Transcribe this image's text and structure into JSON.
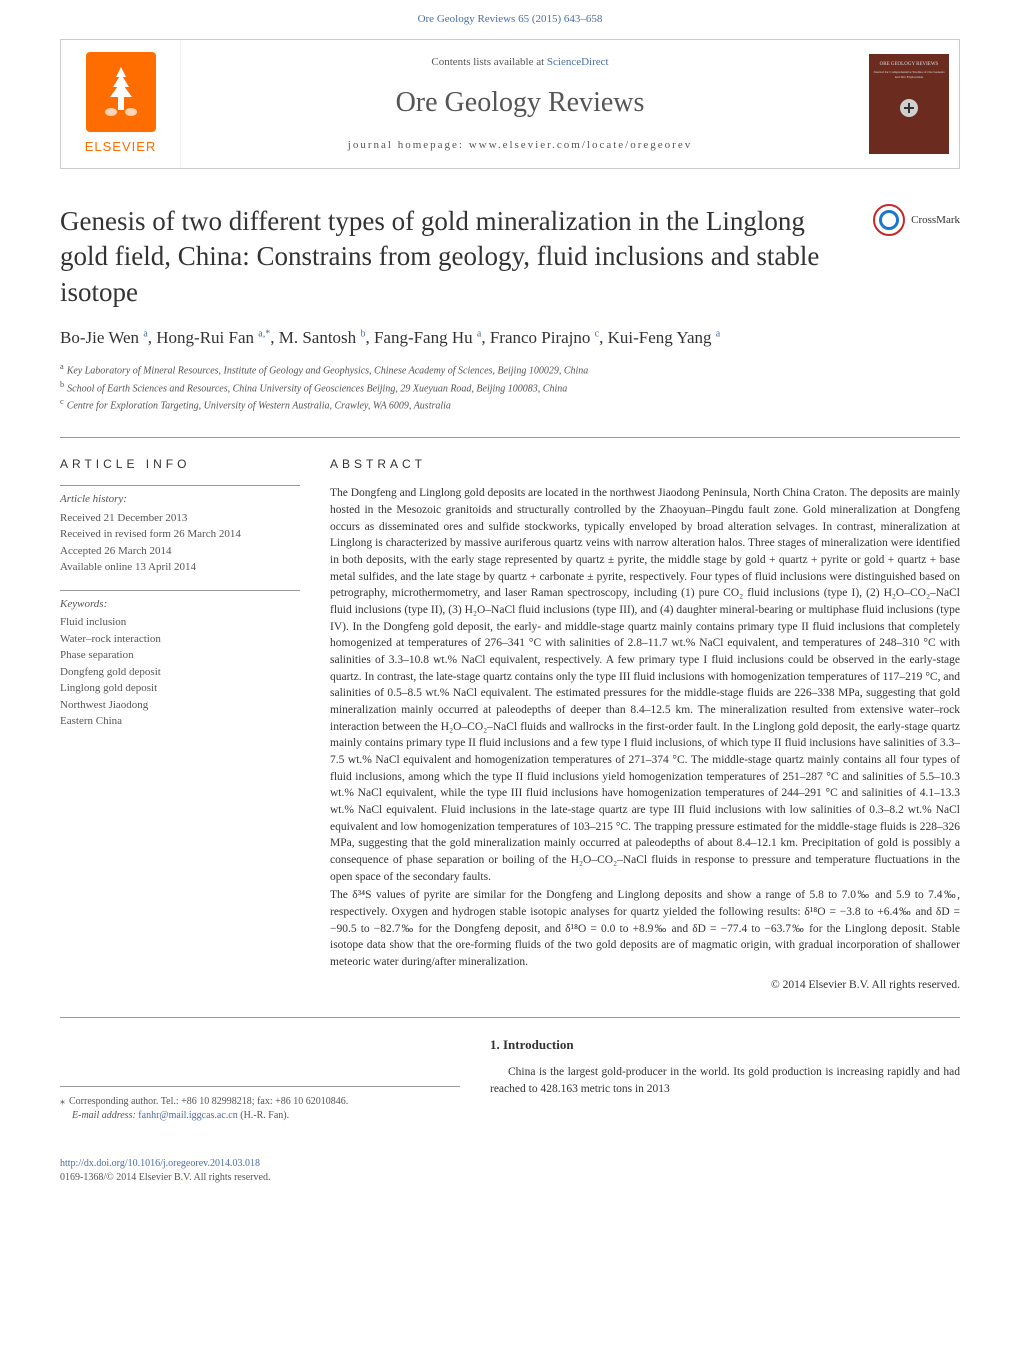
{
  "header": {
    "top_link": "Ore Geology Reviews 65 (2015) 643–658",
    "contents_line": "Contents lists available at ",
    "sciencedirect": "ScienceDirect",
    "journal_name": "Ore Geology Reviews",
    "homepage_line": "journal homepage: www.elsevier.com/locate/oregeorev",
    "elsevier": "ELSEVIER",
    "cover_title": "ORE GEOLOGY REVIEWS",
    "cover_subtitle": "Journal for Comprehensive Studies of Ore Genesis and Ore Exploration"
  },
  "crossmark": "CrossMark",
  "title": "Genesis of two different types of gold mineralization in the Linglong gold field, China: Constrains from geology, fluid inclusions and stable isotope",
  "authors_html": "Bo-Jie Wen <sup>a</sup>, Hong-Rui Fan <sup>a,*</sup>, M. Santosh <sup>b</sup>, Fang-Fang Hu <sup>a</sup>, Franco Pirajno <sup>c</sup>, Kui-Feng Yang <sup>a</sup>",
  "affiliations": {
    "a": "Key Laboratory of Mineral Resources, Institute of Geology and Geophysics, Chinese Academy of Sciences, Beijing 100029, China",
    "b": "School of Earth Sciences and Resources, China University of Geosciences Beijing, 29 Xueyuan Road, Beijing 100083, China",
    "c": "Centre for Exploration Targeting, University of Western Australia, Crawley, WA 6009, Australia"
  },
  "info": {
    "heading": "ARTICLE INFO",
    "history_label": "Article history:",
    "history": [
      "Received 21 December 2013",
      "Received in revised form 26 March 2014",
      "Accepted 26 March 2014",
      "Available online 13 April 2014"
    ],
    "keywords_label": "Keywords:",
    "keywords": [
      "Fluid inclusion",
      "Water–rock interaction",
      "Phase separation",
      "Dongfeng gold deposit",
      "Linglong gold deposit",
      "Northwest Jiaodong",
      "Eastern China"
    ]
  },
  "abstract": {
    "heading": "ABSTRACT",
    "p1": "The Dongfeng and Linglong gold deposits are located in the northwest Jiaodong Peninsula, North China Craton. The deposits are mainly hosted in the Mesozoic granitoids and structurally controlled by the Zhaoyuan–Pingdu fault zone. Gold mineralization at Dongfeng occurs as disseminated ores and sulfide stockworks, typically enveloped by broad alteration selvages. In contrast, mineralization at Linglong is characterized by massive auriferous quartz veins with narrow alteration halos. Three stages of mineralization were identified in both deposits, with the early stage represented by quartz ± pyrite, the middle stage by gold + quartz + pyrite or gold + quartz + base metal sulfides, and the late stage by quartz + carbonate ± pyrite, respectively. Four types of fluid inclusions were distinguished based on petrography, microthermometry, and laser Raman spectroscopy, including (1) pure CO₂ fluid inclusions (type I), (2) H₂O–CO₂–NaCl fluid inclusions (type II), (3) H₂O–NaCl fluid inclusions (type III), and (4) daughter mineral-bearing or multiphase fluid inclusions (type IV). In the Dongfeng gold deposit, the early- and middle-stage quartz mainly contains primary type II fluid inclusions that completely homogenized at temperatures of 276–341 °C with salinities of 2.8–11.7 wt.% NaCl equivalent, and temperatures of 248–310 °C with salinities of 3.3–10.8 wt.% NaCl equivalent, respectively. A few primary type I fluid inclusions could be observed in the early-stage quartz. In contrast, the late-stage quartz contains only the type III fluid inclusions with homogenization temperatures of 117–219 °C, and salinities of 0.5–8.5 wt.% NaCl equivalent. The estimated pressures for the middle-stage fluids are 226–338 MPa, suggesting that gold mineralization mainly occurred at paleodepths of deeper than 8.4–12.5 km. The mineralization resulted from extensive water–rock interaction between the H₂O–CO₂–NaCl fluids and wallrocks in the first-order fault. In the Linglong gold deposit, the early-stage quartz mainly contains primary type II fluid inclusions and a few type I fluid inclusions, of which type II fluid inclusions have salinities of 3.3–7.5 wt.% NaCl equivalent and homogenization temperatures of 271–374 °C. The middle-stage quartz mainly contains all four types of fluid inclusions, among which the type II fluid inclusions yield homogenization temperatures of 251–287 °C and salinities of 5.5–10.3 wt.% NaCl equivalent, while the type III fluid inclusions have homogenization temperatures of 244–291 °C and salinities of 4.1–13.3 wt.% NaCl equivalent. Fluid inclusions in the late-stage quartz are type III fluid inclusions with low salinities of 0.3–8.2 wt.% NaCl equivalent and low homogenization temperatures of 103–215 °C. The trapping pressure estimated for the middle-stage fluids is 228–326 MPa, suggesting that the gold mineralization mainly occurred at paleodepths of about 8.4–12.1 km. Precipitation of gold is possibly a consequence of phase separation or boiling of the H₂O–CO₂–NaCl fluids in response to pressure and temperature fluctuations in the open space of the secondary faults.",
    "p2": "The δ³⁴S values of pyrite are similar for the Dongfeng and Linglong deposits and show a range of 5.8 to 7.0‰ and 5.9 to 7.4‰, respectively. Oxygen and hydrogen stable isotopic analyses for quartz yielded the following results: δ¹⁸O = −3.8 to +6.4‰ and δD = −90.5 to −82.7‰ for the Dongfeng deposit, and δ¹⁸O = 0.0 to +8.9‰ and δD = −77.4 to −63.7‰ for the Linglong deposit. Stable isotope data show that the ore-forming fluids of the two gold deposits are of magmatic origin, with gradual incorporation of shallower meteoric water during/after mineralization.",
    "copyright": "© 2014 Elsevier B.V. All rights reserved."
  },
  "intro": {
    "heading": "1. Introduction",
    "text": "China is the largest gold-producer in the world. Its gold production is increasing rapidly and had reached to 428.163 metric tons in 2013"
  },
  "corresponding": {
    "line1": "Corresponding author. Tel.: +86 10 82998218; fax: +86 10 62010846.",
    "email_label": "E-mail address: ",
    "email": "fanhr@mail.iggcas.ac.cn",
    "email_name": " (H.-R. Fan)."
  },
  "footer": {
    "doi": "http://dx.doi.org/10.1016/j.oregeorev.2014.03.018",
    "issn": "0169-1368/© 2014 Elsevier B.V. All rights reserved."
  },
  "colors": {
    "link": "#4a6fa5",
    "elsevier_orange": "#ff6c00",
    "text": "#333333",
    "muted": "#555555",
    "border": "#999999"
  }
}
